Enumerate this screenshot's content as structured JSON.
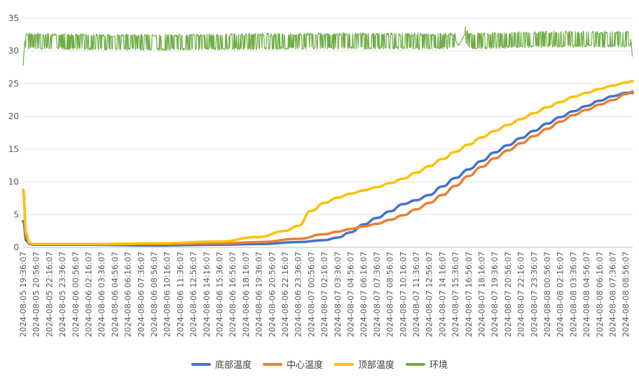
{
  "chart_data": {
    "type": "line",
    "title": "",
    "xlabel": "",
    "ylabel": "",
    "ylim": [
      0,
      35
    ],
    "yticks": [
      0,
      5,
      10,
      15,
      20,
      25,
      30,
      35
    ],
    "grid": true,
    "legend_position": "bottom",
    "x_start": "2024-08-05 19:36:07",
    "x_end": "2024-08-08 09:38:07",
    "x_tick_labels": [
      "2024-08-05 19:36:07",
      "2024-08-05 20:56:07",
      "2024-08-05 22:16:07",
      "2024-08-05 23:36:07",
      "2024-08-06 00:56:07",
      "2024-08-06 02:16:07",
      "2024-08-06 03:36:07",
      "2024-08-06 04:56:07",
      "2024-08-06 06:16:07",
      "2024-08-06 07:36:07",
      "2024-08-06 08:56:07",
      "2024-08-06 10:16:07",
      "2024-08-06 11:36:07",
      "2024-08-06 12:56:07",
      "2024-08-06 14:16:07",
      "2024-08-06 15:36:07",
      "2024-08-06 16:56:07",
      "2024-08-06 18:16:07",
      "2024-08-06 19:36:07",
      "2024-08-06 20:56:07",
      "2024-08-06 22:16:07",
      "2024-08-06 23:36:07",
      "2024-08-07 00:56:07",
      "2024-08-07 02:16:07",
      "2024-08-07 03:36:07",
      "2024-08-07 04:56:07",
      "2024-08-07 06:16:07",
      "2024-08-07 07:36:07",
      "2024-08-07 08:56:07",
      "2024-08-07 10:16:07",
      "2024-08-07 11:36:07",
      "2024-08-07 12:56:07",
      "2024-08-07 14:16:07",
      "2024-08-07 15:36:07",
      "2024-08-07 16:56:07",
      "2024-08-07 18:16:07",
      "2024-08-07 19:36:07",
      "2024-08-07 20:56:07",
      "2024-08-07 22:16:07",
      "2024-08-07 23:36:07",
      "2024-08-08 00:56:07",
      "2024-08-08 02:16:07",
      "2024-08-08 03:36:07",
      "2024-08-08 04:56:07",
      "2024-08-08 06:16:07",
      "2024-08-08 07:36:07",
      "2024-08-08 08:56:07"
    ],
    "series": [
      {
        "name": "底部温度",
        "color": "#4472C4",
        "x": [
          "2024-08-05 19:36:07",
          "2024-08-05 19:56:07",
          "2024-08-05 20:16:07",
          "2024-08-05 20:36:07",
          "2024-08-05 20:56:07",
          "2024-08-05 22:16:07",
          "2024-08-06 02:16:07",
          "2024-08-06 08:56:07",
          "2024-08-06 15:36:07",
          "2024-08-06 19:36:07",
          "2024-08-06 23:36:07",
          "2024-08-07 02:16:07",
          "2024-08-07 03:36:07",
          "2024-08-07 04:56:07",
          "2024-08-07 06:16:07",
          "2024-08-07 07:36:07",
          "2024-08-07 08:56:07",
          "2024-08-07 10:16:07",
          "2024-08-07 11:36:07",
          "2024-08-07 12:56:07",
          "2024-08-07 14:16:07",
          "2024-08-07 15:36:07",
          "2024-08-07 16:56:07",
          "2024-08-07 18:16:07",
          "2024-08-07 19:36:07",
          "2024-08-07 20:56:07",
          "2024-08-07 22:16:07",
          "2024-08-07 23:36:07",
          "2024-08-08 00:56:07",
          "2024-08-08 02:16:07",
          "2024-08-08 03:36:07",
          "2024-08-08 04:56:07",
          "2024-08-08 06:16:07",
          "2024-08-08 07:36:07",
          "2024-08-08 08:56:07",
          "2024-08-08 09:38:07"
        ],
        "values": [
          4.0,
          1.0,
          0.5,
          0.4,
          0.4,
          0.4,
          0.4,
          0.3,
          0.4,
          0.5,
          0.8,
          1.1,
          1.5,
          2.3,
          3.5,
          4.5,
          5.5,
          6.6,
          7.2,
          8.0,
          9.3,
          10.6,
          11.9,
          13.2,
          14.5,
          15.6,
          16.7,
          17.8,
          18.9,
          19.9,
          20.8,
          21.6,
          22.4,
          23.1,
          23.6,
          23.6
        ]
      },
      {
        "name": "中心温度",
        "color": "#ED7D31",
        "x": [
          "2024-08-05 19:36:07",
          "2024-08-05 19:56:07",
          "2024-08-05 20:16:07",
          "2024-08-05 20:36:07",
          "2024-08-05 20:56:07",
          "2024-08-05 22:16:07",
          "2024-08-06 02:16:07",
          "2024-08-06 08:56:07",
          "2024-08-06 15:36:07",
          "2024-08-06 19:36:07",
          "2024-08-06 23:36:07",
          "2024-08-07 02:16:07",
          "2024-08-07 03:36:07",
          "2024-08-07 04:56:07",
          "2024-08-07 06:16:07",
          "2024-08-07 07:36:07",
          "2024-08-07 08:56:07",
          "2024-08-07 10:16:07",
          "2024-08-07 11:36:07",
          "2024-08-07 12:56:07",
          "2024-08-07 14:16:07",
          "2024-08-07 15:36:07",
          "2024-08-07 16:56:07",
          "2024-08-07 18:16:07",
          "2024-08-07 19:36:07",
          "2024-08-07 20:56:07",
          "2024-08-07 22:16:07",
          "2024-08-07 23:36:07",
          "2024-08-08 00:56:07",
          "2024-08-08 02:16:07",
          "2024-08-08 03:36:07",
          "2024-08-08 04:56:07",
          "2024-08-08 06:16:07",
          "2024-08-08 07:36:07",
          "2024-08-08 08:56:07",
          "2024-08-08 09:38:07"
        ],
        "values": [
          8.5,
          1.5,
          0.6,
          0.5,
          0.5,
          0.5,
          0.5,
          0.5,
          0.6,
          0.8,
          1.3,
          2.0,
          2.4,
          2.8,
          3.2,
          3.6,
          4.2,
          4.9,
          5.8,
          6.8,
          8.0,
          9.4,
          10.9,
          12.3,
          13.6,
          14.8,
          15.9,
          17.0,
          18.1,
          19.2,
          20.2,
          21.0,
          21.8,
          22.5,
          23.4,
          23.8
        ]
      },
      {
        "name": "顶部温度",
        "color": "#FFC000",
        "x": [
          "2024-08-05 19:36:07",
          "2024-08-05 19:56:07",
          "2024-08-05 20:16:07",
          "2024-08-05 20:36:07",
          "2024-08-05 20:56:07",
          "2024-08-05 22:16:07",
          "2024-08-06 02:16:07",
          "2024-08-06 08:56:07",
          "2024-08-06 15:36:07",
          "2024-08-06 19:36:07",
          "2024-08-06 22:16:07",
          "2024-08-06 23:36:07",
          "2024-08-07 00:56:07",
          "2024-08-07 02:16:07",
          "2024-08-07 03:36:07",
          "2024-08-07 04:56:07",
          "2024-08-07 06:16:07",
          "2024-08-07 07:36:07",
          "2024-08-07 08:56:07",
          "2024-08-07 10:16:07",
          "2024-08-07 11:36:07",
          "2024-08-07 12:56:07",
          "2024-08-07 14:16:07",
          "2024-08-07 15:36:07",
          "2024-08-07 16:56:07",
          "2024-08-07 18:16:07",
          "2024-08-07 19:36:07",
          "2024-08-07 20:56:07",
          "2024-08-07 22:16:07",
          "2024-08-07 23:36:07",
          "2024-08-08 00:56:07",
          "2024-08-08 02:16:07",
          "2024-08-08 03:36:07",
          "2024-08-08 04:56:07",
          "2024-08-08 06:16:07",
          "2024-08-08 07:36:07",
          "2024-08-08 08:56:07",
          "2024-08-08 09:38:07"
        ],
        "values": [
          8.8,
          2.0,
          0.7,
          0.5,
          0.5,
          0.5,
          0.5,
          0.6,
          0.9,
          1.6,
          2.5,
          3.3,
          5.6,
          6.8,
          7.6,
          8.2,
          8.7,
          9.2,
          9.8,
          10.5,
          11.4,
          12.4,
          13.5,
          14.6,
          15.7,
          16.8,
          17.8,
          18.7,
          19.6,
          20.5,
          21.4,
          22.2,
          23.0,
          23.6,
          24.2,
          24.7,
          25.2,
          25.4
        ]
      },
      {
        "name": "环境",
        "color": "#70AD47",
        "band": true,
        "min": 30.0,
        "max": 32.5,
        "x": [
          "2024-08-05 19:36:07",
          "2024-08-05 19:46:07",
          "2024-08-06 08:56:07",
          "2024-08-07 00:56:07",
          "2024-08-07 15:36:07",
          "2024-08-07 15:56:07",
          "2024-08-07 16:36:07",
          "2024-08-07 16:56:07",
          "2024-08-08 00:56:07",
          "2024-08-08 09:28:07",
          "2024-08-08 09:38:07"
        ],
        "values": [
          27.8,
          31.5,
          31.3,
          31.5,
          31.5,
          30.8,
          32.7,
          31.5,
          31.8,
          31.8,
          28.3
        ]
      }
    ]
  }
}
